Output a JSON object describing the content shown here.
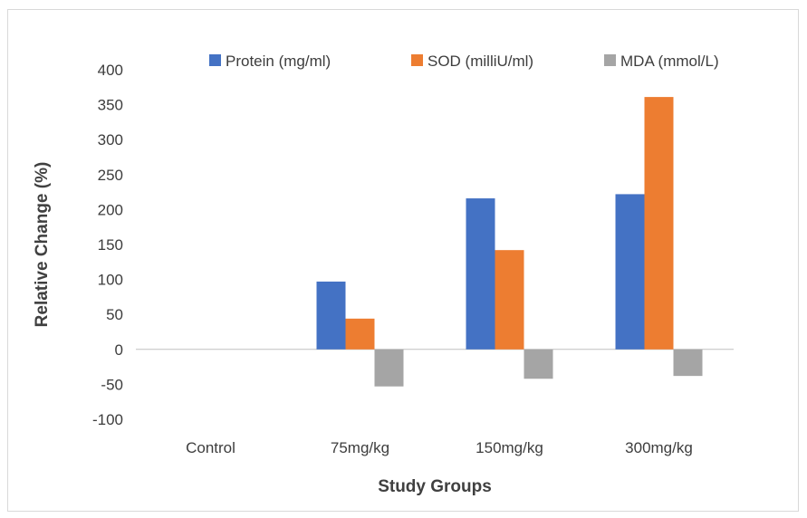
{
  "chart_data": {
    "type": "bar",
    "title": "",
    "xlabel": "Study Groups",
    "ylabel": "Relative Change (%)",
    "categories": [
      "Control",
      "75mg/kg",
      "150mg/kg",
      "300mg/kg"
    ],
    "series": [
      {
        "name": "Protein (mg/ml)",
        "color": "#4472c4",
        "values": [
          0,
          97,
          216,
          222
        ]
      },
      {
        "name": "SOD (milliU/ml)",
        "color": "#ed7d31",
        "values": [
          0,
          44,
          142,
          361
        ]
      },
      {
        "name": "MDA (mmol/L)",
        "color": "#a5a5a5",
        "values": [
          0,
          -53,
          -42,
          -38
        ]
      }
    ],
    "ylim": [
      -100,
      400
    ],
    "yticks": [
      -100,
      -50,
      0,
      50,
      100,
      150,
      200,
      250,
      300,
      350,
      400
    ],
    "grid": false,
    "legend_position": "top"
  }
}
